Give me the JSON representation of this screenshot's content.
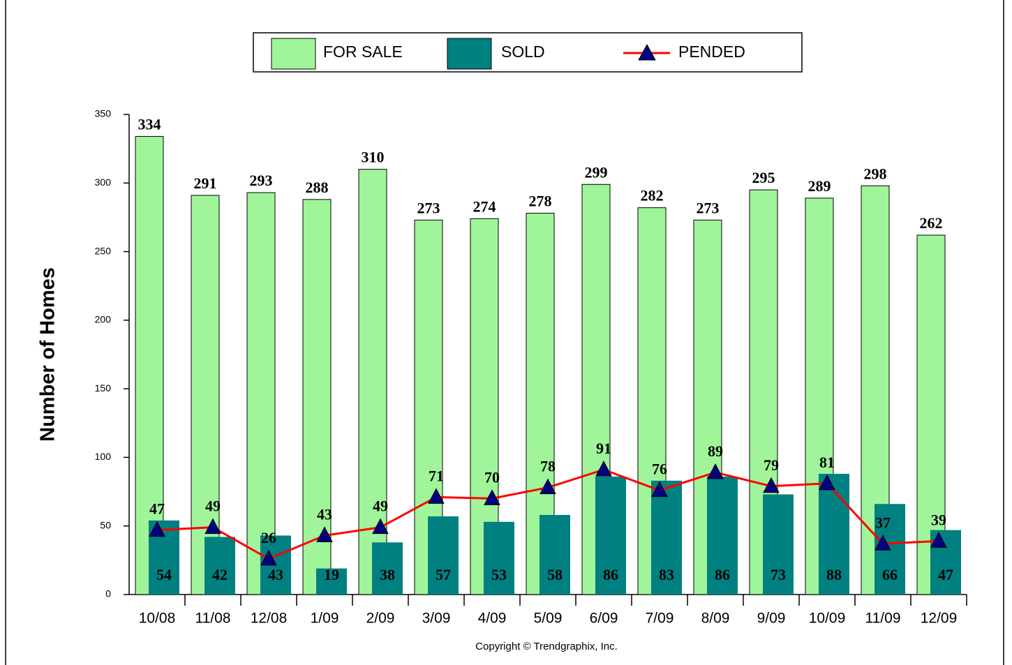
{
  "chart_data": {
    "type": "bar",
    "y_label": "Number of Homes",
    "copyright": "Copyright © Trendgraphix, Inc.",
    "categories": [
      "10/08",
      "11/08",
      "12/08",
      "1/09",
      "2/09",
      "3/09",
      "4/09",
      "5/09",
      "6/09",
      "7/09",
      "8/09",
      "9/09",
      "10/09",
      "11/09",
      "12/09"
    ],
    "series": [
      {
        "name": "FOR SALE",
        "type": "bar",
        "color": "#a0f59a",
        "values": [
          334,
          291,
          293,
          288,
          310,
          273,
          274,
          278,
          299,
          282,
          273,
          295,
          289,
          298,
          262
        ]
      },
      {
        "name": "SOLD",
        "type": "bar",
        "color": "#008080",
        "values": [
          54,
          42,
          43,
          19,
          38,
          57,
          53,
          58,
          86,
          83,
          86,
          73,
          88,
          66,
          47
        ]
      },
      {
        "name": "PENDED",
        "type": "line",
        "color": "#ff0000",
        "marker_color": "#000080",
        "values": [
          47,
          49,
          26,
          43,
          49,
          71,
          70,
          78,
          91,
          76,
          89,
          79,
          81,
          37,
          39
        ]
      }
    ],
    "ylim": [
      0,
      350
    ],
    "yticks": [
      0,
      50,
      100,
      150,
      200,
      250,
      300,
      350
    ],
    "legend": "top"
  }
}
